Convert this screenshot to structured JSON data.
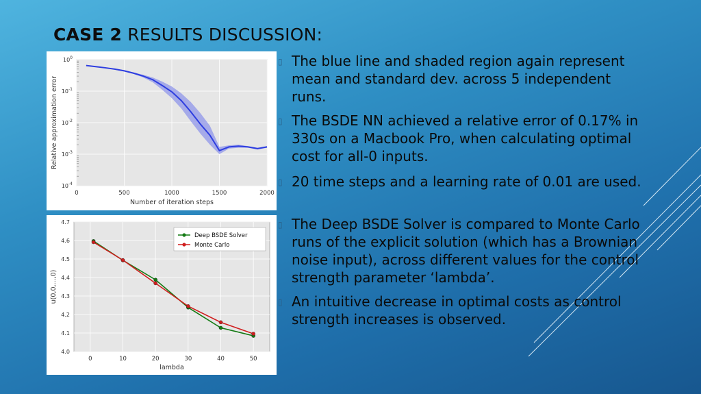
{
  "slide": {
    "title_bold": "CASE 2",
    "title_rest": " RESULTS DISCUSSION:"
  },
  "bullets": [
    {
      "text": "The blue line and shaded region again represent mean and standard dev. across 5  independent runs."
    },
    {
      "text": "The BSDE NN achieved a relative error of 0.17% in 330s on a Macbook Pro, when calculating optimal cost for all-0 inputs."
    },
    {
      "text": "20 time steps and a learning rate of 0.01 are used."
    },
    {
      "text": "The Deep BSDE Solver is compared to Monte Carlo runs of the explicit solution (which has a Brownian noise input), across different values for the control strength parameter ‘lambda’."
    },
    {
      "text": "An intuitive decrease in optimal costs as control strength increases is observed."
    }
  ],
  "colors": {
    "line_blue": "#2e3ee0",
    "band_blue": "#8f96ea",
    "series_green": "#147a14",
    "series_red": "#d01e1e",
    "plot_bg": "#e6e6e6"
  },
  "chart_data": [
    {
      "type": "line",
      "title": "",
      "xlabel": "Number of iteration steps",
      "ylabel": "Relative approximation error",
      "yscale": "log",
      "xlim": [
        0,
        2000
      ],
      "ylim": [
        0.0001,
        1
      ],
      "xticks": [
        "0",
        "500",
        "1000",
        "1500",
        "2000"
      ],
      "yticks": [
        "10^0",
        "10^-1",
        "10^-2",
        "10^-3",
        "10^-4"
      ],
      "grid": true,
      "series": [
        {
          "x": [
            100,
            200,
            300,
            400,
            500,
            600,
            700,
            800,
            900,
            1000,
            1100,
            1200,
            1300,
            1400,
            1500,
            1600,
            1700,
            1800,
            1900,
            2000
          ],
          "y": [
            0.65,
            0.6,
            0.55,
            0.5,
            0.44,
            0.37,
            0.3,
            0.23,
            0.15,
            0.095,
            0.05,
            0.022,
            0.009,
            0.004,
            0.0013,
            0.0017,
            0.0018,
            0.0017,
            0.0015,
            0.0017
          ],
          "y_lower": [
            0.64,
            0.59,
            0.54,
            0.48,
            0.42,
            0.35,
            0.27,
            0.19,
            0.11,
            0.06,
            0.028,
            0.011,
            0.0045,
            0.002,
            0.001,
            0.0015,
            0.0016,
            0.0016,
            0.0014,
            0.0016
          ],
          "y_upper": [
            0.66,
            0.61,
            0.56,
            0.52,
            0.46,
            0.39,
            0.33,
            0.27,
            0.2,
            0.14,
            0.085,
            0.045,
            0.02,
            0.008,
            0.0017,
            0.0019,
            0.002,
            0.0018,
            0.0016,
            0.0018
          ]
        }
      ]
    },
    {
      "type": "line",
      "title": "",
      "xlabel": "lambda",
      "ylabel": "u(0,0,...,0)",
      "xlim": [
        -5,
        55
      ],
      "ylim": [
        4.0,
        4.7
      ],
      "xticks": [
        "0",
        "10",
        "20",
        "30",
        "40",
        "50"
      ],
      "yticks": [
        "4.7",
        "4.6",
        "4.5",
        "4.4",
        "4.3",
        "4.2",
        "4.1",
        "4.0"
      ],
      "grid": true,
      "legend": "top-right",
      "categories": [
        1,
        10,
        20,
        30,
        40,
        50
      ],
      "series": [
        {
          "name": "Deep BSDE Solver",
          "values": [
            4.597,
            4.493,
            4.388,
            4.238,
            4.128,
            4.085
          ]
        },
        {
          "name": "Monte Carlo",
          "values": [
            4.591,
            4.494,
            4.369,
            4.245,
            4.158,
            4.096
          ]
        }
      ]
    }
  ]
}
